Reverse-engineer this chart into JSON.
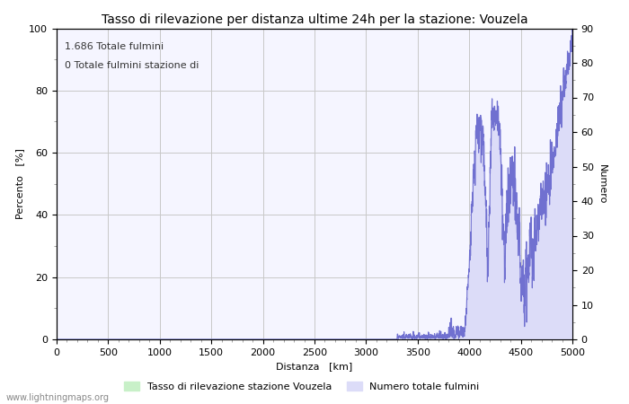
{
  "title": "Tasso di rilevazione per distanza ultime 24h per la stazione: Vouzela",
  "xlabel": "Distanza   [km]",
  "ylabel_left": "Percento   [%]",
  "ylabel_right": "Numero",
  "annotation_line1": "1.686 Totale fulmini",
  "annotation_line2": "0 Totale fulmini stazione di",
  "legend_label1": "Tasso di rilevazione stazione Vouzela",
  "legend_label2": "Numero totale fulmini",
  "watermark": "www.lightningmaps.org",
  "xlim": [
    0,
    5000
  ],
  "ylim_left": [
    0,
    100
  ],
  "ylim_right": [
    0,
    90
  ],
  "xticks": [
    0,
    500,
    1000,
    1500,
    2000,
    2500,
    3000,
    3500,
    4000,
    4500,
    5000
  ],
  "yticks_left": [
    0,
    20,
    40,
    60,
    80,
    100
  ],
  "yticks_right": [
    0,
    10,
    20,
    30,
    40,
    50,
    60,
    70,
    80,
    90
  ],
  "bg_color": "#f5f5ff",
  "line_color": "#7070d0",
  "fill_color": "#dcdcf8",
  "green_fill_color": "#c8f0c8",
  "grid_color": "#c8c8c8",
  "title_fontsize": 10,
  "axis_label_fontsize": 8,
  "tick_fontsize": 8,
  "anno_fontsize": 8,
  "watermark_fontsize": 7
}
